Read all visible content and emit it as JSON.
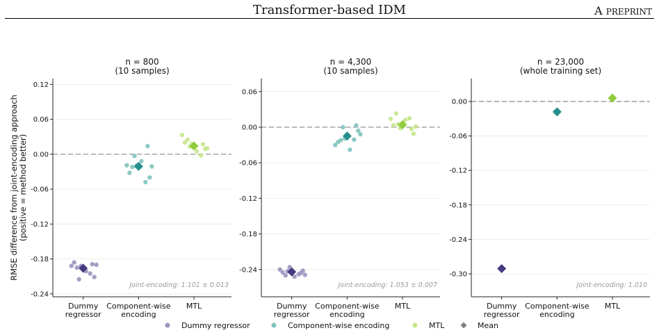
{
  "header": {
    "title": "Transformer-based IDM",
    "right_label_first": "A ",
    "right_label_rest": "PREPRINT"
  },
  "chart_data": {
    "type": "scatter",
    "ylabel_line1": "RMSE difference from joint-encoding approach",
    "ylabel_line2": "(positive = method better)",
    "categories": [
      [
        "Dummy",
        "regressor"
      ],
      [
        "Component-wise",
        "encoding"
      ],
      [
        "MTL"
      ]
    ],
    "colors": {
      "dummy_points": "#9b95c0",
      "component_points": "#7fc3bd",
      "mtl_points": "#c6e68a",
      "dummy_mean": "#463a80",
      "component_mean": "#23908b",
      "mtl_mean": "#8fcc3c",
      "legend_mean": "#808080",
      "zero_line": "#b0b0b0",
      "grid": "#ececec"
    },
    "legend": {
      "position": "bottom-center",
      "items": [
        "Dummy regressor",
        "Component-wise encoding",
        "MTL",
        "Mean"
      ]
    },
    "panels": [
      {
        "title_line1": "n = 800",
        "title_line2": "(10 samples)",
        "annotation": "Joint-encoding: 1.101 ± 0.013",
        "ylim": [
          -0.245,
          0.13
        ],
        "yticks": [
          -0.24,
          -0.18,
          -0.12,
          -0.06,
          0.0,
          0.06,
          0.12
        ],
        "ytick_labels": [
          "-0.24",
          "-0.18",
          "-0.12",
          "-0.06",
          "0.00",
          "0.06",
          "0.12"
        ],
        "grid": true,
        "series": [
          {
            "category": 0,
            "mean": -0.196,
            "points": [
              -0.192,
              -0.189,
              -0.195,
              -0.201,
              -0.211,
              -0.186,
              -0.192,
              -0.205,
              -0.215,
              -0.19
            ]
          },
          {
            "category": 1,
            "mean": -0.021,
            "points": [
              -0.019,
              0.014,
              -0.022,
              -0.012,
              -0.04,
              -0.032,
              -0.02,
              -0.048,
              -0.003,
              -0.021
            ]
          },
          {
            "category": 2,
            "mean": 0.014,
            "points": [
              0.033,
              0.017,
              0.025,
              0.005,
              0.009,
              0.02,
              0.018,
              -0.002,
              0.013,
              0.01
            ]
          }
        ]
      },
      {
        "title_line1": "n = 4,300",
        "title_line2": "(10 samples)",
        "annotation": "Joint-encoding: 1.053 ± 0.007",
        "ylim": [
          -0.286,
          0.082
        ],
        "yticks": [
          -0.24,
          -0.18,
          -0.12,
          -0.06,
          0.0,
          0.06
        ],
        "ytick_labels": [
          "-0.24",
          "-0.18",
          "-0.12",
          "-0.06",
          "0.00",
          "0.06"
        ],
        "grid": true,
        "series": [
          {
            "category": 0,
            "mean": -0.244,
            "points": [
              -0.24,
              -0.246,
              -0.25,
              -0.252,
              -0.242,
              -0.245,
              -0.236,
              -0.248,
              -0.243,
              -0.249
            ]
          },
          {
            "category": 1,
            "mean": -0.015,
            "points": [
              -0.03,
              0.003,
              -0.022,
              -0.038,
              -0.006,
              -0.025,
              -0.019,
              -0.021,
              0.0,
              -0.012
            ]
          },
          {
            "category": 2,
            "mean": 0.004,
            "points": [
              0.014,
              -0.003,
              0.023,
              0.012,
              -0.011,
              0.003,
              -0.002,
              0.015,
              0.005,
              0.001
            ]
          }
        ]
      },
      {
        "title_line1": "n = 23,000",
        "title_line2": "(whole training set)",
        "annotation": "Joint-encoding: 1.010",
        "ylim": [
          -0.34,
          0.04
        ],
        "yticks": [
          -0.3,
          -0.24,
          -0.18,
          -0.12,
          -0.06,
          0.0
        ],
        "ytick_labels": [
          "-0.30",
          "-0.24",
          "-0.18",
          "-0.12",
          "-0.06",
          "0.00"
        ],
        "grid": true,
        "series": [
          {
            "category": 0,
            "mean": -0.291,
            "points": []
          },
          {
            "category": 1,
            "mean": -0.018,
            "points": []
          },
          {
            "category": 2,
            "mean": 0.006,
            "points": []
          }
        ]
      }
    ]
  }
}
